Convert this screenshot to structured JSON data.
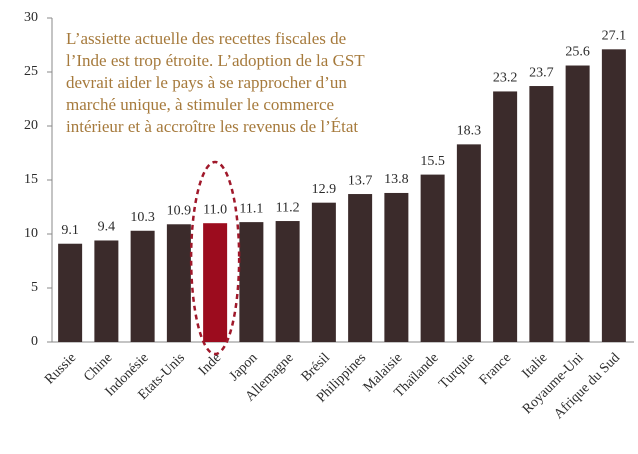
{
  "chart_data": {
    "type": "bar",
    "annotation": [
      "L’assiette actuelle des recettes fiscales de",
      "l’Inde est trop étroite. L’adoption de la GST",
      "devrait aider le pays à se rapprocher d’un",
      "marché unique, à stimuler le commerce",
      "intérieur et à accroître les revenus de l’État"
    ],
    "categories": [
      "Russie",
      "Chine",
      "Indonésie",
      "Etats-Unis",
      "Inde",
      "Japon",
      "Allemagne",
      "Brésil",
      "Philippines",
      "Malaisie",
      "Thaïlande",
      "Turquie",
      "France",
      "Italie",
      "Royaume-Uni",
      "Afrique du Sud"
    ],
    "values": [
      9.1,
      9.4,
      10.3,
      10.9,
      11.0,
      11.1,
      11.2,
      12.9,
      13.7,
      13.8,
      15.5,
      18.3,
      23.2,
      23.7,
      25.6,
      27.1
    ],
    "value_labels": [
      "9.1",
      "9.4",
      "10.3",
      "10.9",
      "11.0",
      "11.1",
      "11.2",
      "12.9",
      "13.7",
      "13.8",
      "15.5",
      "18.3",
      "23.2",
      "23.7",
      "25.6",
      "27.1"
    ],
    "colors": [
      "#3b2b2b",
      "#3b2b2b",
      "#3b2b2b",
      "#3b2b2b",
      "#9c0c1e",
      "#3b2b2b",
      "#3b2b2b",
      "#3b2b2b",
      "#3b2b2b",
      "#3b2b2b",
      "#3b2b2b",
      "#3b2b2b",
      "#3b2b2b",
      "#3b2b2b",
      "#3b2b2b",
      "#3b2b2b"
    ],
    "ylim": [
      0,
      30
    ],
    "yticks": [
      0,
      5,
      10,
      15,
      20,
      25,
      30
    ],
    "grid": false
  }
}
